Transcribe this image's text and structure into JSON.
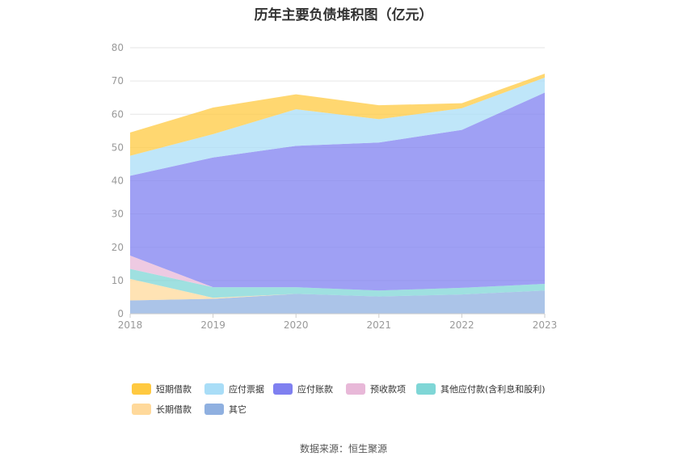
{
  "title": "历年主要负债堆积图（亿元）",
  "source": "数据来源：恒生聚源",
  "chart_data": {
    "type": "area",
    "stacked": true,
    "categories": [
      "2018",
      "2019",
      "2020",
      "2021",
      "2022",
      "2023"
    ],
    "ylim": [
      0,
      80
    ],
    "yticks": [
      0,
      10,
      20,
      30,
      40,
      50,
      60,
      70,
      80
    ],
    "grid": true,
    "legend_position": "bottom",
    "series": [
      {
        "name": "其它",
        "color": "#8fb0e0",
        "values": [
          4.0,
          4.5,
          6.0,
          5.2,
          5.8,
          7.0
        ]
      },
      {
        "name": "长期借款",
        "color": "#ffd99b",
        "values": [
          6.5,
          0.3,
          0.0,
          0.0,
          0.0,
          0.0
        ]
      },
      {
        "name": "其他应付款(含利息和股利)",
        "color": "#7fd6d6",
        "values": [
          3.0,
          3.2,
          2.0,
          1.8,
          2.0,
          2.0
        ]
      },
      {
        "name": "预收款项",
        "color": "#e8b8d8",
        "values": [
          4.0,
          0.0,
          0.0,
          0.0,
          0.0,
          0.0
        ]
      },
      {
        "name": "应付账款",
        "color": "#7f80f0",
        "values": [
          24.0,
          39.0,
          42.5,
          44.5,
          47.5,
          57.5
        ]
      },
      {
        "name": "应付票据",
        "color": "#a9ddf7",
        "values": [
          6.0,
          7.0,
          11.0,
          7.0,
          6.5,
          4.5
        ]
      },
      {
        "name": "短期借款",
        "color": "#ffc940",
        "values": [
          7.0,
          8.0,
          4.5,
          4.2,
          1.5,
          1.2
        ]
      }
    ],
    "legend_order": [
      "短期借款",
      "应付票据",
      "应付账款",
      "预收款项",
      "其他应付款(含利息和股利)",
      "长期借款",
      "其它"
    ]
  }
}
